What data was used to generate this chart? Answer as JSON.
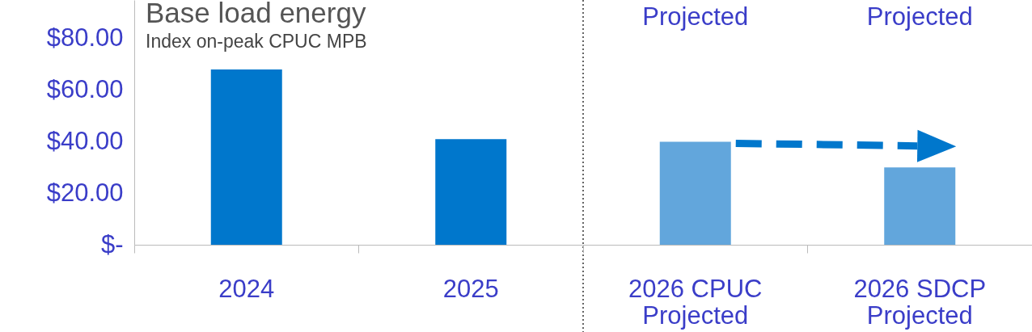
{
  "chart_data": {
    "type": "bar",
    "title": "Base load energy",
    "subtitle": "Index on-peak CPUC MPB",
    "categories": [
      "2024",
      "2025",
      "2026  CPUC Projected",
      "2026  SDCP Projected"
    ],
    "values": [
      68,
      41,
      40,
      30
    ],
    "colors": [
      "#0077cc",
      "#0077cc",
      "#62a6dc",
      "#62a6dc"
    ],
    "ylim": [
      0,
      95
    ],
    "yticks": [
      {
        "value": 0,
        "label": "$-"
      },
      {
        "value": 20,
        "label": "$20.00"
      },
      {
        "value": 40,
        "label": "$40.00"
      },
      {
        "value": 60,
        "label": "$60.00"
      },
      {
        "value": 80,
        "label": "$80.00"
      }
    ],
    "annotations": [
      "Projected",
      "Projected"
    ],
    "grid": false
  }
}
